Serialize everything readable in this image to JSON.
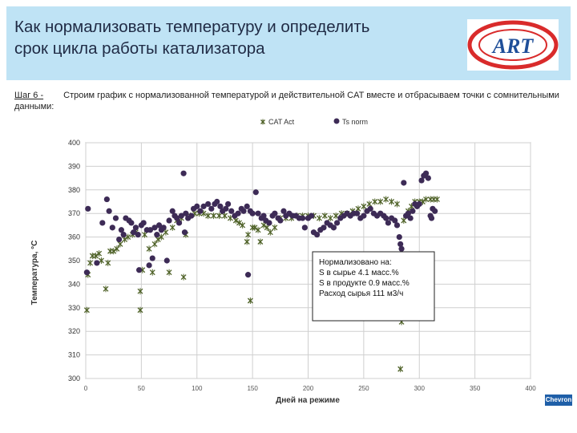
{
  "header": {
    "title_line1": "Как нормализовать температуру и определить",
    "title_line2": "срок цикла работы катализатора",
    "logo_text": "ART"
  },
  "step": {
    "label": "Шаг 6 -",
    "text": "Строим график с нормализованной температурой и действительной CAT вместе и отбрасываем точки с сомнительными данными:"
  },
  "corner_logo": "Chevron",
  "chart_data": {
    "type": "scatter",
    "xlabel": "Дней на режиме",
    "ylabel": "Температура, °C",
    "xlim": [
      0,
      400
    ],
    "ylim": [
      300,
      400
    ],
    "xticks": [
      0,
      50,
      100,
      150,
      200,
      250,
      300,
      350,
      400
    ],
    "yticks": [
      300,
      310,
      320,
      330,
      340,
      350,
      360,
      370,
      380,
      390,
      400
    ],
    "grid": true,
    "legend": "top-center",
    "annotation": [
      "Нормализовано на:",
      "S в сырье 4.1 масс.%",
      "S в продукте 0.9 масс.%",
      "Расход сырья 111 м3/ч"
    ],
    "series": [
      {
        "name": "CAT Act",
        "marker": "x",
        "color": "#4f6228",
        "points": [
          [
            1,
            329
          ],
          [
            2,
            344
          ],
          [
            4,
            349
          ],
          [
            6,
            352
          ],
          [
            9,
            352
          ],
          [
            12,
            353
          ],
          [
            14,
            350
          ],
          [
            18,
            338
          ],
          [
            20,
            349
          ],
          [
            22,
            354
          ],
          [
            25,
            354
          ],
          [
            28,
            355
          ],
          [
            31,
            357
          ],
          [
            35,
            359
          ],
          [
            38,
            360
          ],
          [
            42,
            361
          ],
          [
            45,
            362
          ],
          [
            49,
            337
          ],
          [
            49,
            329
          ],
          [
            51,
            346
          ],
          [
            53,
            361
          ],
          [
            57,
            355
          ],
          [
            60,
            345
          ],
          [
            62,
            357
          ],
          [
            65,
            359
          ],
          [
            68,
            360
          ],
          [
            72,
            362
          ],
          [
            75,
            345
          ],
          [
            78,
            364
          ],
          [
            82,
            367
          ],
          [
            86,
            368
          ],
          [
            88,
            343
          ],
          [
            90,
            361
          ],
          [
            94,
            369
          ],
          [
            98,
            370
          ],
          [
            102,
            370
          ],
          [
            106,
            370
          ],
          [
            110,
            369
          ],
          [
            115,
            369
          ],
          [
            120,
            369
          ],
          [
            125,
            369
          ],
          [
            130,
            368
          ],
          [
            135,
            367
          ],
          [
            138,
            366
          ],
          [
            141,
            365
          ],
          [
            145,
            358
          ],
          [
            146,
            361
          ],
          [
            148,
            333
          ],
          [
            150,
            364
          ],
          [
            152,
            364
          ],
          [
            155,
            363
          ],
          [
            157,
            358
          ],
          [
            160,
            365
          ],
          [
            163,
            364
          ],
          [
            166,
            362
          ],
          [
            170,
            364
          ],
          [
            175,
            368
          ],
          [
            180,
            368
          ],
          [
            185,
            368
          ],
          [
            190,
            369
          ],
          [
            195,
            369
          ],
          [
            200,
            369
          ],
          [
            205,
            369
          ],
          [
            210,
            368
          ],
          [
            215,
            369
          ],
          [
            220,
            368
          ],
          [
            225,
            369
          ],
          [
            230,
            370
          ],
          [
            235,
            370
          ],
          [
            240,
            371
          ],
          [
            245,
            372
          ],
          [
            250,
            373
          ],
          [
            255,
            374
          ],
          [
            260,
            375
          ],
          [
            265,
            375
          ],
          [
            270,
            376
          ],
          [
            275,
            375
          ],
          [
            280,
            374
          ],
          [
            283,
            304
          ],
          [
            284,
            324
          ],
          [
            286,
            367
          ],
          [
            290,
            371
          ],
          [
            293,
            373
          ],
          [
            296,
            375
          ],
          [
            300,
            375
          ],
          [
            303,
            375
          ],
          [
            306,
            376
          ],
          [
            310,
            376
          ],
          [
            313,
            376
          ],
          [
            316,
            376
          ]
        ]
      },
      {
        "name": "Ts norm",
        "marker": "o",
        "color": "#3d2b56",
        "points": [
          [
            1,
            345
          ],
          [
            2,
            372
          ],
          [
            10,
            349
          ],
          [
            15,
            366
          ],
          [
            19,
            376
          ],
          [
            21,
            371
          ],
          [
            24,
            364
          ],
          [
            27,
            368
          ],
          [
            30,
            359
          ],
          [
            32,
            363
          ],
          [
            34,
            361
          ],
          [
            36,
            368
          ],
          [
            39,
            367
          ],
          [
            41,
            366
          ],
          [
            43,
            362
          ],
          [
            45,
            364
          ],
          [
            47,
            361
          ],
          [
            48,
            346
          ],
          [
            50,
            365
          ],
          [
            52,
            366
          ],
          [
            55,
            363
          ],
          [
            57,
            348
          ],
          [
            58,
            363
          ],
          [
            60,
            351
          ],
          [
            62,
            364
          ],
          [
            64,
            361
          ],
          [
            66,
            365
          ],
          [
            68,
            363
          ],
          [
            70,
            364
          ],
          [
            73,
            350
          ],
          [
            75,
            367
          ],
          [
            78,
            371
          ],
          [
            80,
            369
          ],
          [
            82,
            368
          ],
          [
            84,
            366
          ],
          [
            86,
            369
          ],
          [
            88,
            387
          ],
          [
            89,
            362
          ],
          [
            90,
            370
          ],
          [
            92,
            368
          ],
          [
            95,
            369
          ],
          [
            97,
            372
          ],
          [
            100,
            373
          ],
          [
            103,
            371
          ],
          [
            106,
            373
          ],
          [
            110,
            374
          ],
          [
            113,
            372
          ],
          [
            116,
            374
          ],
          [
            118,
            375
          ],
          [
            121,
            373
          ],
          [
            123,
            371
          ],
          [
            126,
            372
          ],
          [
            128,
            374
          ],
          [
            131,
            371
          ],
          [
            134,
            369
          ],
          [
            137,
            370
          ],
          [
            140,
            372
          ],
          [
            142,
            371
          ],
          [
            145,
            373
          ],
          [
            146,
            344
          ],
          [
            148,
            371
          ],
          [
            150,
            370
          ],
          [
            153,
            379
          ],
          [
            155,
            370
          ],
          [
            158,
            368
          ],
          [
            160,
            369
          ],
          [
            162,
            367
          ],
          [
            165,
            366
          ],
          [
            168,
            369
          ],
          [
            170,
            370
          ],
          [
            173,
            368
          ],
          [
            175,
            367
          ],
          [
            178,
            371
          ],
          [
            180,
            369
          ],
          [
            183,
            370
          ],
          [
            186,
            369
          ],
          [
            189,
            369
          ],
          [
            192,
            368
          ],
          [
            195,
            368
          ],
          [
            197,
            364
          ],
          [
            200,
            368
          ],
          [
            203,
            369
          ],
          [
            205,
            362
          ],
          [
            208,
            361
          ],
          [
            211,
            363
          ],
          [
            214,
            364
          ],
          [
            217,
            366
          ],
          [
            220,
            365
          ],
          [
            223,
            364
          ],
          [
            226,
            366
          ],
          [
            229,
            368
          ],
          [
            232,
            369
          ],
          [
            235,
            370
          ],
          [
            238,
            369
          ],
          [
            241,
            370
          ],
          [
            244,
            370
          ],
          [
            247,
            368
          ],
          [
            250,
            369
          ],
          [
            253,
            371
          ],
          [
            256,
            372
          ],
          [
            259,
            370
          ],
          [
            262,
            369
          ],
          [
            265,
            370
          ],
          [
            268,
            369
          ],
          [
            270,
            368
          ],
          [
            272,
            366
          ],
          [
            275,
            368
          ],
          [
            278,
            367
          ],
          [
            280,
            365
          ],
          [
            282,
            360
          ],
          [
            283,
            357
          ],
          [
            284,
            355
          ],
          [
            286,
            383
          ],
          [
            288,
            369
          ],
          [
            290,
            370
          ],
          [
            292,
            368
          ],
          [
            294,
            371
          ],
          [
            296,
            374
          ],
          [
            298,
            373
          ],
          [
            300,
            374
          ],
          [
            302,
            384
          ],
          [
            304,
            386
          ],
          [
            306,
            387
          ],
          [
            308,
            385
          ],
          [
            310,
            369
          ],
          [
            311,
            368
          ],
          [
            312,
            372
          ],
          [
            314,
            371
          ]
        ]
      }
    ]
  }
}
